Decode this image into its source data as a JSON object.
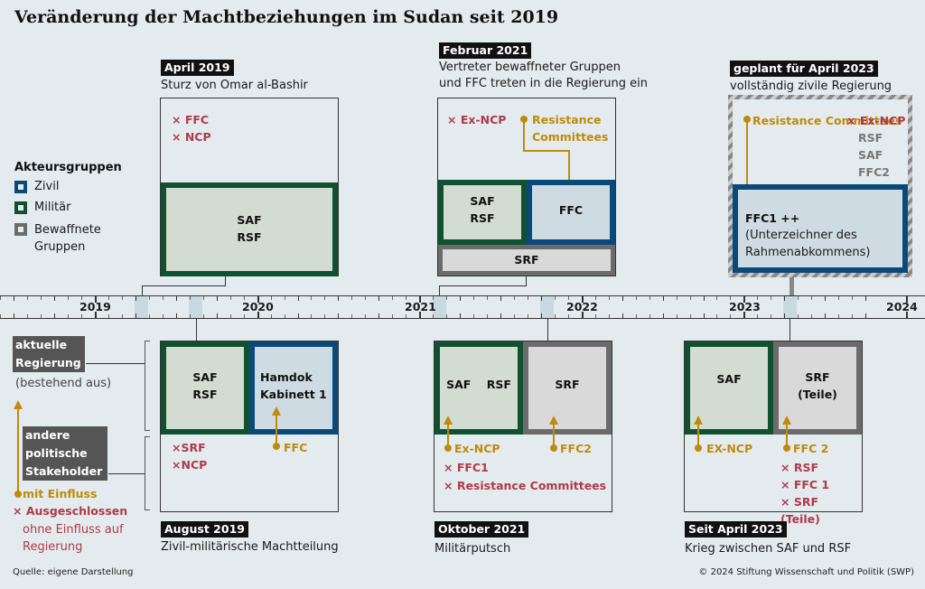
{
  "title": "Veränderung der Machtbeziehungen im Sudan seit 2019",
  "colors": {
    "civil": "#0a4a7a",
    "military": "#0f5130",
    "armed": "#6b6b6b",
    "excluded": "#b03a48",
    "influence": "#c08a0c"
  },
  "legend": {
    "heading": "Akteursgruppen",
    "items": [
      {
        "label": "Zivil",
        "color": "#0a4a7a"
      },
      {
        "label": "Militär",
        "color": "#0f5130"
      },
      {
        "label": "Bewaffnete Gruppen",
        "color": "#6b6b6b"
      }
    ]
  },
  "key": {
    "current_gov": "aktuelle Regierung",
    "consisting": "(bestehend aus)",
    "other_stakeholders": "andere politische Stakeholder",
    "with_influence": "mit Einfluss",
    "excluded": "Ausgeschlossen",
    "no_influence": "ohne Einfluss auf Regierung"
  },
  "timeline": {
    "years": [
      "2019",
      "2020",
      "2021",
      "2022",
      "2023",
      "2024"
    ]
  },
  "events": {
    "apr2019": {
      "date": "April 2019",
      "desc": "Sturz von Omar al-Bashir",
      "excluded": [
        "FFC",
        "NCP"
      ],
      "military": "SAF\nRSF"
    },
    "feb2021": {
      "date": "Februar 2021",
      "desc1": "Vertreter bewaffneter Gruppen",
      "desc2": "und FFC treten in die Regierung ein",
      "excluded": "Ex-NCP",
      "influence": "Resistance Committees",
      "military": "SAF\nRSF",
      "civil": "FFC",
      "armed": "SRF"
    },
    "apr2023plan": {
      "date": "geplant für April 2023",
      "desc": "vollständig zivile Regierung",
      "influence": "Resistance Committees",
      "excluded": "Ex-NCP",
      "greyed": [
        "RSF",
        "SAF",
        "FFC2"
      ],
      "civil_title": "FFC1 ++",
      "civil_note": "(Unterzeichner des Rahmenabkommens)"
    },
    "aug2019": {
      "date": "August 2019",
      "desc": "Zivil-militärische Machtteilung",
      "military": "SAF\nRSF",
      "civil": "Hamdok\nKabinett 1",
      "excluded": [
        "SRF",
        "NCP"
      ],
      "influence": "FFC"
    },
    "oct2021": {
      "date": "Oktober 2021",
      "desc": "Militärputsch",
      "military": "SAF    RSF",
      "armed": "SRF",
      "influence": [
        "Ex-NCP",
        "FFC2"
      ],
      "excluded": [
        "FFC1",
        "Resistance Committees"
      ]
    },
    "apr2023": {
      "date": "Seit April 2023",
      "desc": "Krieg zwischen SAF und RSF",
      "military": "SAF",
      "armed": "SRF\n(Teile)",
      "influence": [
        "EX-NCP",
        "FFC 2"
      ],
      "excluded": [
        "RSF",
        "FFC 1",
        "SRF (Teile)"
      ]
    }
  },
  "footer": {
    "source": "Quelle: eigene Darstellung",
    "copyright": "© 2024 Stiftung Wissenschaft und Politik (SWP)"
  }
}
